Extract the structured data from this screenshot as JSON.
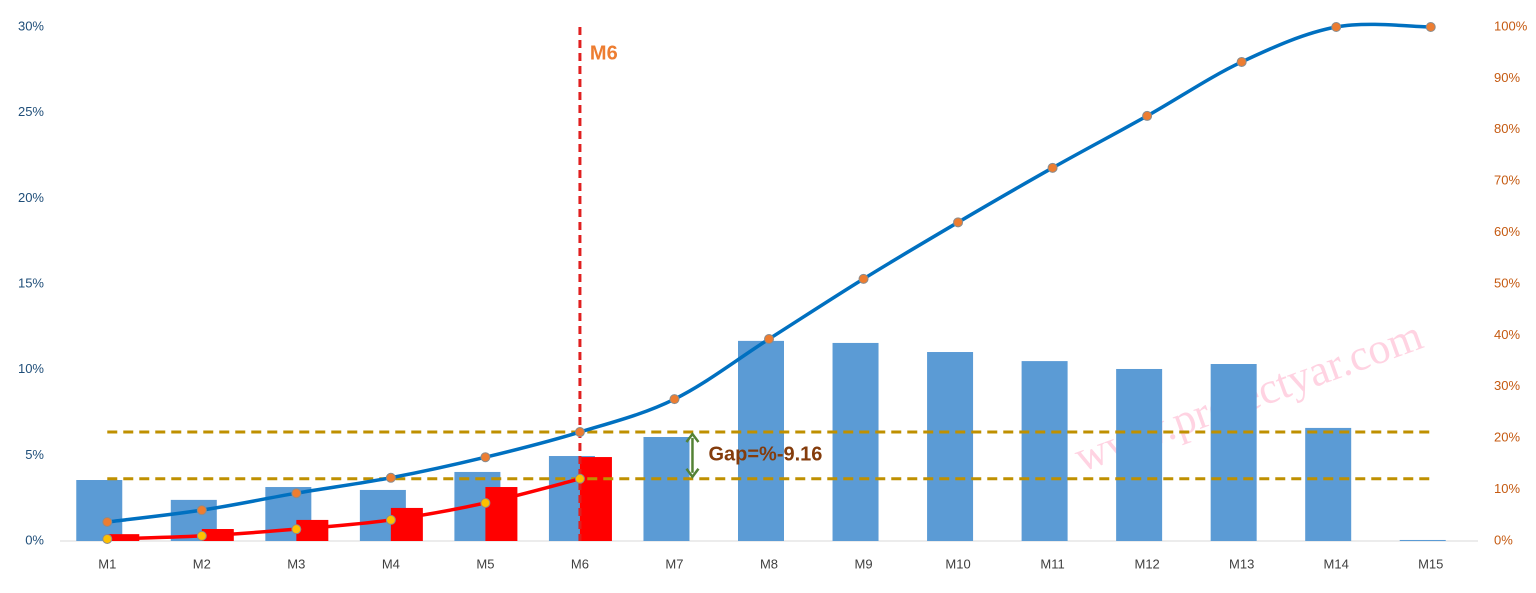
{
  "chart_data": {
    "type": "combo",
    "categories": [
      "M1",
      "M2",
      "M3",
      "M4",
      "M5",
      "M6",
      "M7",
      "M8",
      "M9",
      "M10",
      "M11",
      "M12",
      "M13",
      "M14",
      "M15"
    ],
    "series": [
      {
        "type": "bar",
        "color": "#5b9bd5",
        "axis": "y",
        "values": [
          3.56,
          2.4,
          3.15,
          2.98,
          4.03,
          4.96,
          6.07,
          11.68,
          11.56,
          11.03,
          10.5,
          10.04,
          10.33,
          6.6,
          0.06
        ]
      },
      {
        "type": "bar",
        "color": "#ff0000",
        "axis": "y",
        "values": [
          0.4,
          0.7,
          1.23,
          1.93,
          3.15,
          4.9,
          null,
          null,
          null,
          null,
          null,
          null,
          null,
          null,
          null
        ]
      },
      {
        "type": "line",
        "color": "#0070c0",
        "marker_color": "#ed7d31",
        "axis": "y2",
        "values": [
          3.7,
          6.0,
          9.3,
          12.3,
          16.3,
          21.2,
          27.6,
          39.3,
          51,
          62,
          72.6,
          82.7,
          93.2,
          100,
          100
        ]
      },
      {
        "type": "line",
        "color": "#ff0000",
        "marker_color": "#ffc000",
        "axis": "y2",
        "values": [
          0.4,
          1.0,
          2.3,
          4.1,
          7.4,
          12.1,
          null,
          null,
          null,
          null,
          null,
          null,
          null,
          null,
          null
        ]
      }
    ],
    "ylim": [
      0,
      30
    ],
    "yticks": [
      {
        "value": 0,
        "label": "0%"
      },
      {
        "value": 5,
        "label": "5%"
      },
      {
        "value": 10,
        "label": "10%"
      },
      {
        "value": 15,
        "label": "15%"
      },
      {
        "value": 20,
        "label": "20%"
      },
      {
        "value": 25,
        "label": "25%"
      },
      {
        "value": 30,
        "label": "30%"
      }
    ],
    "y2lim": [
      0,
      100
    ],
    "y2ticks": [
      {
        "value": 0,
        "label": "0%"
      },
      {
        "value": 10,
        "label": "10%"
      },
      {
        "value": 20,
        "label": "20%"
      },
      {
        "value": 30,
        "label": "30%"
      },
      {
        "value": 40,
        "label": "40%"
      },
      {
        "value": 50,
        "label": "50%"
      },
      {
        "value": 60,
        "label": "60%"
      },
      {
        "value": 70,
        "label": "70%"
      },
      {
        "value": 80,
        "label": "80%"
      },
      {
        "value": 90,
        "label": "90%"
      },
      {
        "value": 100,
        "label": "100%"
      }
    ],
    "annotations": [
      {
        "text": "M6"
      },
      {
        "text": "Gap=%-9.16"
      }
    ],
    "watermark": "www.projectyar.com"
  }
}
